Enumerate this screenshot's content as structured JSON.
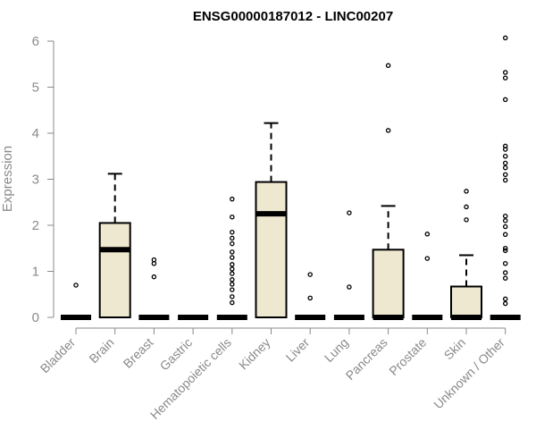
{
  "chart_data": {
    "type": "box",
    "title": "ENSG00000187012 - LINC00207",
    "xlabel": "",
    "ylabel": "Expression",
    "ylim": [
      0,
      6.2
    ],
    "yticks": [
      0,
      1,
      2,
      3,
      4,
      5,
      6
    ],
    "grid": false,
    "legend": "none",
    "box_fill": "#efe8d0",
    "box_stroke": "#000000",
    "categories": [
      "Bladder",
      "Brain",
      "Breast",
      "Gastric",
      "Hematopoietic cells",
      "Kidney",
      "Liver",
      "Lung",
      "Pancreas",
      "Prostate",
      "Skin",
      "Unknown / Other"
    ],
    "boxes": [
      {
        "category": "Bladder",
        "q1": 0,
        "median": 0,
        "q3": 0,
        "whisker_low": 0,
        "whisker_high": 0,
        "outliers": [
          0.7
        ]
      },
      {
        "category": "Brain",
        "q1": 0,
        "median": 1.47,
        "q3": 2.05,
        "whisker_low": 0,
        "whisker_high": 3.12,
        "outliers": []
      },
      {
        "category": "Breast",
        "q1": 0,
        "median": 0,
        "q3": 0,
        "whisker_low": 0,
        "whisker_high": 0,
        "outliers": [
          0.88,
          1.17,
          1.25
        ]
      },
      {
        "category": "Gastric",
        "q1": 0,
        "median": 0,
        "q3": 0,
        "whisker_low": 0,
        "whisker_high": 0,
        "outliers": []
      },
      {
        "category": "Hematopoietic cells",
        "q1": 0,
        "median": 0,
        "q3": 0,
        "whisker_low": 0,
        "whisker_high": 0,
        "outliers": [
          0.32,
          0.45,
          0.6,
          0.72,
          0.82,
          0.95,
          1.05,
          1.15,
          1.3,
          1.42,
          1.6,
          1.72,
          1.85,
          2.18,
          2.57
        ]
      },
      {
        "category": "Kidney",
        "q1": 0,
        "median": 2.25,
        "q3": 2.94,
        "whisker_low": 0,
        "whisker_high": 4.22,
        "outliers": []
      },
      {
        "category": "Liver",
        "q1": 0,
        "median": 0,
        "q3": 0,
        "whisker_low": 0,
        "whisker_high": 0,
        "outliers": [
          0.42,
          0.93
        ]
      },
      {
        "category": "Lung",
        "q1": 0,
        "median": 0,
        "q3": 0,
        "whisker_low": 0,
        "whisker_high": 0,
        "outliers": [
          0.66,
          2.27
        ]
      },
      {
        "category": "Pancreas",
        "q1": 0,
        "median": 0,
        "q3": 1.47,
        "whisker_low": 0,
        "whisker_high": 2.42,
        "outliers": [
          4.06,
          5.47
        ]
      },
      {
        "category": "Prostate",
        "q1": 0,
        "median": 0,
        "q3": 0,
        "whisker_low": 0,
        "whisker_high": 0,
        "outliers": [
          1.28,
          1.81
        ]
      },
      {
        "category": "Skin",
        "q1": 0,
        "median": 0,
        "q3": 0.67,
        "whisker_low": 0,
        "whisker_high": 1.35,
        "outliers": [
          2.12,
          2.4,
          2.74
        ]
      },
      {
        "category": "Unknown / Other",
        "q1": 0,
        "median": 0,
        "q3": 0,
        "whisker_low": 0,
        "whisker_high": 0,
        "outliers": [
          0.3,
          0.4,
          0.85,
          0.97,
          1.17,
          1.45,
          1.5,
          1.8,
          1.97,
          2.1,
          2.2,
          2.98,
          3.1,
          3.25,
          3.35,
          3.5,
          3.65,
          3.72,
          4.73,
          5.2,
          5.32,
          6.07
        ]
      }
    ]
  }
}
